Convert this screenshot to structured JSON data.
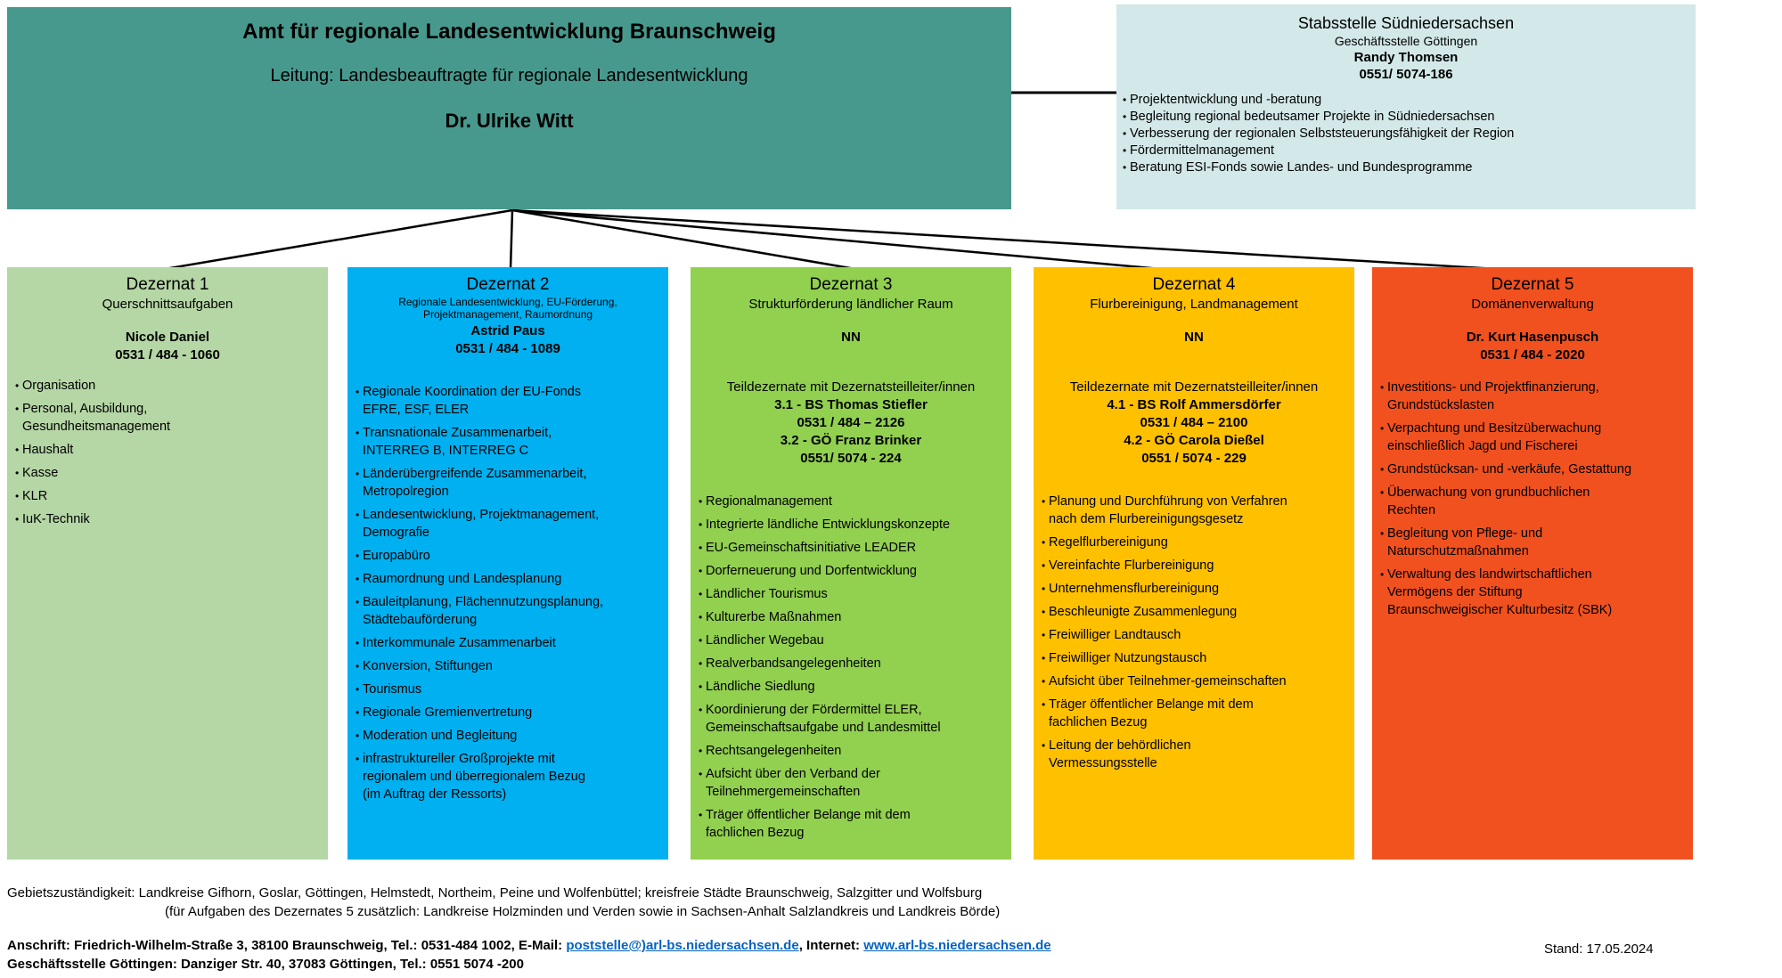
{
  "colors": {
    "header_bg": "#47998d",
    "stab_bg": "#d3e8e8",
    "link": "#0563c1",
    "line": "#000000"
  },
  "header": {
    "title": "Amt für regionale Landesentwicklung Braunschweig",
    "subtitle": "Leitung: Landesbeauftragte für regionale Landesentwicklung",
    "leader": "Dr. Ulrike Witt"
  },
  "stabsstelle": {
    "title": "Stabsstelle Südniedersachsen",
    "subtitle": "Geschäftsstelle Göttingen",
    "contact_name": "Randy Thomsen",
    "contact_phone": "0551/ 5074-186",
    "bullets": [
      "Projektentwicklung und -beratung",
      "Begleitung regional bedeutsamer Projekte in Südniedersachsen",
      "Verbesserung der regionalen Selbststeuerungsfähigkeit der Region",
      "Fördermittelmanagement",
      "Beratung ESI-Fonds sowie Landes- und Bundesprogramme"
    ]
  },
  "dezernate": [
    {
      "title": "Dezernat 1",
      "subtitle": "Querschnittsaufgaben",
      "leader": "Nicole Daniel\n0531 / 484 - 1060",
      "color": "#b5d6a5",
      "bullets": [
        "Organisation",
        "Personal, Ausbildung,\nGesundheitsmanagement",
        "Haushalt",
        "Kasse",
        "KLR",
        "IuK-Technik"
      ]
    },
    {
      "title": "Dezernat 2",
      "subtitle": "Regionale Landesentwicklung, EU-Förderung,\nProjektmanagement, Raumordnung",
      "leader": "Astrid Paus\n0531 / 484 - 1089",
      "color": "#00b0f0",
      "bullets": [
        "Regionale Koordination der EU-Fonds\nEFRE, ESF, ELER",
        "Transnationale Zusammenarbeit,\nINTERREG B, INTERREG C",
        "Länderübergreifende Zusammenarbeit,\nMetropolregion",
        "Landesentwicklung,  Projektmanagement,\nDemografie",
        "Europabüro",
        "Raumordnung und Landesplanung",
        "Bauleitplanung, Flächennutzungsplanung,\nStädtebauförderung",
        "Interkommunale Zusammenarbeit",
        "Konversion, Stiftungen",
        "Tourismus",
        "Regionale Gremienvertretung",
        "Moderation und Begleitung",
        "infrastruktureller Großprojekte mit\nregionalem und überregionalem Bezug\n(im Auftrag der Ressorts)"
      ]
    },
    {
      "title": "Dezernat 3",
      "subtitle": "Strukturförderung ländlicher Raum",
      "leader": "NN",
      "team_note": "Teildezernate mit Dezernatsteilleiter/innen",
      "team_lines": "3.1 - BS Thomas Stiefler\n0531 / 484 – 2126\n3.2 - GÖ Franz Brinker\n0551/ 5074 - 224",
      "color": "#92d050",
      "bullets": [
        "Regionalmanagement",
        "Integrierte ländliche Entwicklungskonzepte",
        "EU-Gemeinschaftsinitiative LEADER",
        "Dorferneuerung und Dorfentwicklung",
        "Ländlicher Tourismus",
        "Kulturerbe Maßnahmen",
        "Ländlicher Wegebau",
        "Realverbandsangelegenheiten",
        "Ländliche Siedlung",
        "Koordinierung der Fördermittel ELER,\nGemeinschaftsaufgabe und Landesmittel",
        "Rechtsangelegenheiten",
        "Aufsicht über den Verband der\nTeilnehmergemeinschaften",
        "Träger öffentlicher Belange mit dem\nfachlichen Bezug"
      ]
    },
    {
      "title": "Dezernat 4",
      "subtitle": "Flurbereinigung, Landmanagement",
      "leader": "NN",
      "team_note": "Teildezernate mit Dezernatsteilleiter/innen",
      "team_lines": "4.1 - BS  Rolf Ammersdörfer\n0531 / 484 – 2100\n4.2 - GÖ  Carola Dießel\n0551 / 5074 - 229",
      "color": "#ffc000",
      "bullets": [
        "Planung und Durchführung von Verfahren\nnach dem Flurbereinigungsgesetz",
        "Regelflurbereinigung",
        "Vereinfachte Flurbereinigung",
        "Unternehmensflurbereinigung",
        "Beschleunigte Zusammenlegung",
        "Freiwilliger Landtausch",
        "Freiwilliger Nutzungstausch",
        "Aufsicht über Teilnehmer-gemeinschaften",
        "Träger öffentlicher Belange mit dem\nfachlichen Bezug",
        "Leitung der behördlichen\nVermessungsstelle"
      ]
    },
    {
      "title": "Dezernat 5",
      "subtitle": "Domänenverwaltung",
      "leader": "Dr. Kurt Hasenpusch\n0531 / 484 - 2020",
      "color": "#f0511f",
      "bullets": [
        "Investitions- und Projektfinanzierung,\nGrundstückslasten",
        "Verpachtung und Besitzüberwachung\neinschließlich Jagd und Fischerei",
        "Grundstücksan- und -verkäufe, Gestattung",
        "Überwachung von grundbuchlichen\nRechten",
        "Begleitung von Pflege- und\nNaturschutzmaßnahmen",
        "Verwaltung des landwirtschaftlichen\nVermögens der Stiftung\nBraunschweigischer Kulturbesitz (SBK)"
      ]
    }
  ],
  "footer": {
    "gebiet_line1": "Gebietszuständigkeit: Landkreise Gifhorn, Goslar, Göttingen, Helmstedt, Northeim, Peine und Wolfenbüttel; kreisfreie Städte Braunschweig, Salzgitter und Wolfsburg",
    "gebiet_line2": "(für Aufgaben des Dezernates 5 zusätzlich: Landkreise Holzminden und Verden sowie in Sachsen-Anhalt Salzlandkreis und Landkreis Börde)",
    "anschrift_prefix": "Anschrift: Friedrich-Wilhelm-Straße 3, 38100 Braunschweig, Tel.: 0531-484 1002, E-Mail: ",
    "email": "poststelle@)arl-bs.niedersachsen.de",
    "between": ", Internet: ",
    "website": "www.arl-bs.niedersachsen.de",
    "goettingen": "Geschäftsstelle Göttingen: Danziger Str. 40, 37083 Göttingen, Tel.: 0551 5074 -200",
    "stand": "Stand: 17.05.2024"
  }
}
